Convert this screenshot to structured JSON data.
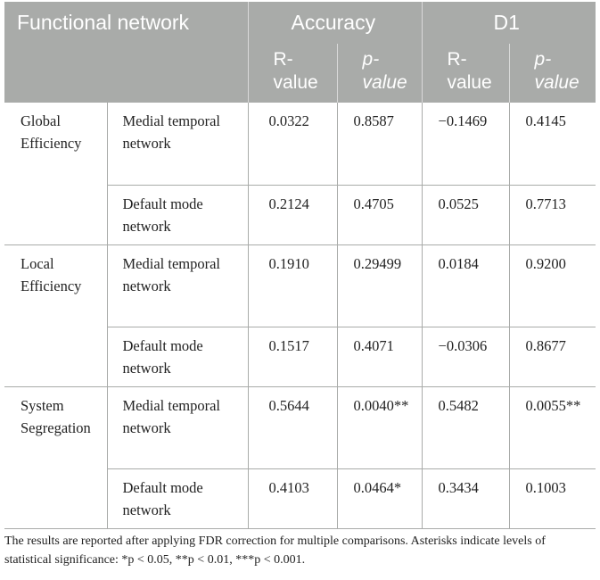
{
  "header": {
    "functional_network": "Functional network",
    "accuracy": "Accuracy",
    "d1": "D1",
    "r_value": "R-\nvalue",
    "p_value": "p-\nvalue"
  },
  "rows": [
    {
      "group": "Global Efficiency",
      "network": "Medial temporal network",
      "acc_r": "0.0322",
      "acc_p": "0.8587",
      "d1_r": "−0.1469",
      "d1_p": "0.4145"
    },
    {
      "group": "",
      "network": "Default mode network",
      "acc_r": "0.2124",
      "acc_p": "0.4705",
      "d1_r": "0.0525",
      "d1_p": "0.7713"
    },
    {
      "group": "Local Efficiency",
      "network": "Medial temporal network",
      "acc_r": "0.1910",
      "acc_p": "0.29499",
      "d1_r": "0.0184",
      "d1_p": "0.9200"
    },
    {
      "group": "",
      "network": "Default mode network",
      "acc_r": "0.1517",
      "acc_p": "0.4071",
      "d1_r": "−0.0306",
      "d1_p": "0.8677"
    },
    {
      "group": "System Segregation",
      "network": "Medial temporal network",
      "acc_r": "0.5644",
      "acc_p": "0.0040**",
      "d1_r": "0.5482",
      "d1_p": "0.0055**"
    },
    {
      "group": "",
      "network": "Default mode network",
      "acc_r": "0.4103",
      "acc_p": "0.0464*",
      "d1_r": "0.3434",
      "d1_p": "0.1003"
    }
  ],
  "footnote": "The results are reported after applying FDR correction for multiple comparisons. Asterisks indicate levels of statistical significance: *p < 0.05, **p < 0.01, ***p < 0.001."
}
